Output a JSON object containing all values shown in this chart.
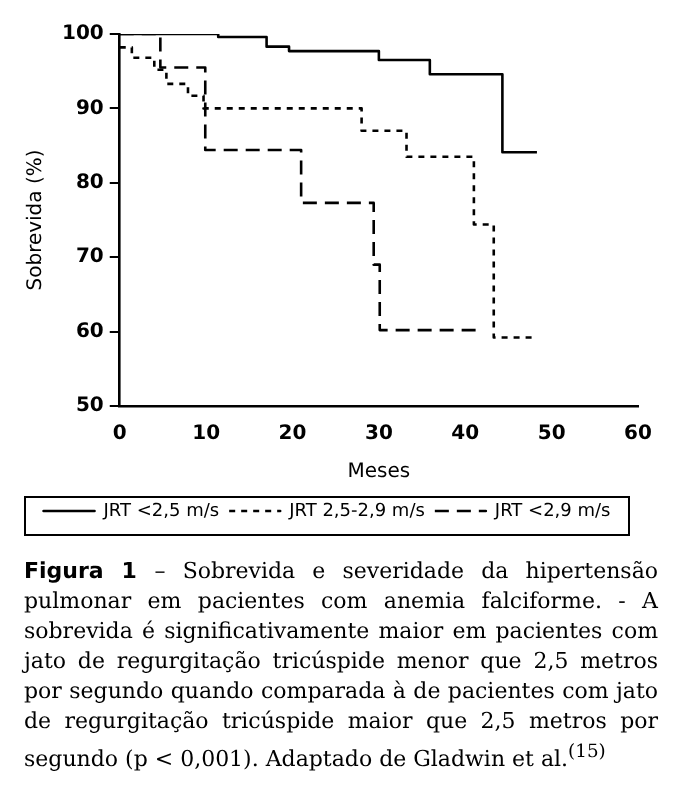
{
  "chart_data": {
    "type": "step",
    "xlabel": "Meses",
    "ylabel": "Sobrevida (%)",
    "xlim": [
      0,
      60
    ],
    "xticks": [
      0,
      10,
      20,
      30,
      40,
      50,
      60
    ],
    "ylim": [
      50,
      100
    ],
    "yticks": [
      50,
      60,
      70,
      80,
      90,
      100
    ],
    "grid": false,
    "legend": "bottom",
    "marker": "none",
    "series": [
      {
        "name": "JRT <2,5 m/s",
        "color": "#000000",
        "line_style": "solid",
        "x": [
          0,
          11.4,
          17,
          19.6,
          30,
          35.9,
          44.3,
          48.3
        ],
        "values": [
          100,
          99.6,
          98.3,
          97.7,
          96.5,
          94.6,
          84.1,
          84.1
        ]
      },
      {
        "name": "JRT 2,5-2,9 m/s",
        "color": "#000000",
        "line_style": "dotted",
        "x": [
          0,
          1.4,
          4,
          5.4,
          7.9,
          9.7,
          28,
          33.2,
          41,
          43.3,
          48.3
        ],
        "values": [
          98.2,
          96.8,
          95.2,
          93.3,
          91.7,
          90,
          87,
          83.5,
          74.4,
          59.2,
          59.2
        ]
      },
      {
        "name": "JRT <2,9 m/s",
        "color": "#000000",
        "line_style": "dashed",
        "x": [
          0,
          4.7,
          9.9,
          21,
          29.4,
          30.1,
          41.2
        ],
        "values": [
          100,
          95.5,
          84.4,
          77.3,
          69,
          60.2,
          60.2
        ]
      }
    ],
    "annotations": [
      "Figura 1",
      "– Sobrevida e severidade da hipertensão pulmonar em pacientes com anemia falciforme. - A sobrevida é significativamente maior em pacientes com jato de regurgitação tricúspide menor que 2,5 metros por segundo quando comparada à de pacientes com jato de regurgitação tricúspide maior que 2,5 metros por segundo (p < 0,001). Adaptado de Gladwin et al.$^{(15)}$"
    ]
  }
}
